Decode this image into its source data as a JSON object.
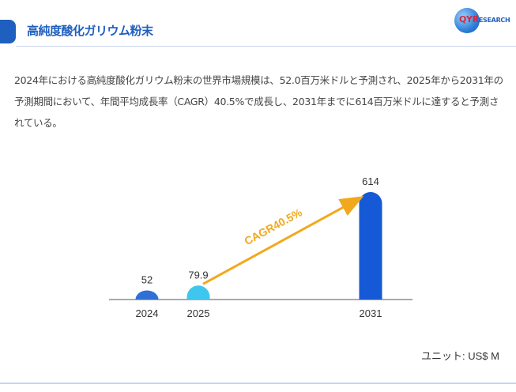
{
  "header": {
    "title": "高純度酸化ガリウム粉末",
    "logo_text": "QYR",
    "logo_tail": "ESEARCH"
  },
  "description": "2024年における高純度酸化ガリウム粉末の世界市場規模は、52.0百万米ドルと予測され、2025年から2031年の予測期間において、年間平均成長率（CAGR）40.5%で成長し、2031年までに614百万米ドルに達すると予測されている。",
  "unit_label": "ユニット: US$ M",
  "chart_data": {
    "type": "bar",
    "categories": [
      "2024",
      "2025",
      "2031"
    ],
    "values": [
      52,
      79.9,
      614
    ],
    "value_labels": [
      "52",
      "79.9",
      "614"
    ],
    "bar_colors": [
      "#2f6fd6",
      "#3ec6ee",
      "#1559d6"
    ],
    "annotation": {
      "text": "CAGR40.5%",
      "from": "2025",
      "to": "2031",
      "color": "#f2a81d"
    },
    "axis_color": "#555555",
    "ylim": [
      0,
      614
    ]
  }
}
